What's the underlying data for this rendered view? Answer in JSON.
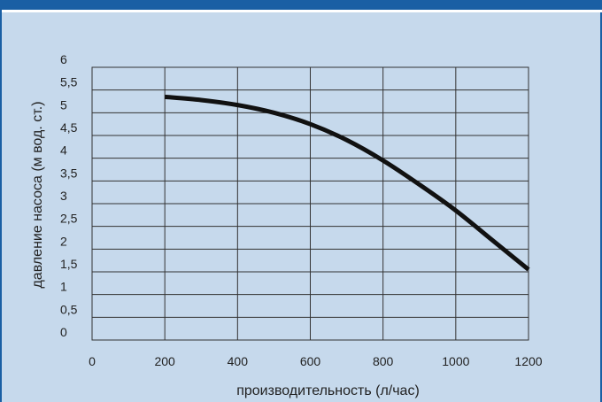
{
  "colors": {
    "background": "#c6d9ec",
    "frame": "#1a5fa4",
    "grid": "#333333",
    "curve": "#111111"
  },
  "chart_data": {
    "type": "line",
    "title": "",
    "xlabel": "производительность (л/час)",
    "ylabel": "давление насоса (м вод. ст.)",
    "xlim": [
      0,
      1200
    ],
    "ylim": [
      0,
      6
    ],
    "x_ticks": [
      0,
      200,
      400,
      600,
      800,
      1000,
      1200
    ],
    "x_tick_labels": [
      "0",
      "200",
      "400",
      "600",
      "800",
      "1000",
      "1200"
    ],
    "y_ticks": [
      0,
      0.5,
      1,
      1.5,
      2,
      2.5,
      3,
      3.5,
      4,
      4.5,
      5,
      5.5,
      6
    ],
    "y_tick_labels": [
      "0",
      "0,5",
      "1",
      "1,5",
      "2",
      "2,5",
      "3",
      "3,5",
      "4",
      "4,5",
      "5",
      "5,5",
      "6"
    ],
    "grid": true,
    "legend": "none",
    "series": [
      {
        "x": [
          200,
          300,
          400,
          500,
          600,
          700,
          800,
          900,
          1000,
          1100,
          1200
        ],
        "y": [
          5.35,
          5.28,
          5.17,
          5.0,
          4.75,
          4.4,
          3.95,
          3.42,
          2.85,
          2.2,
          1.55
        ]
      }
    ]
  }
}
